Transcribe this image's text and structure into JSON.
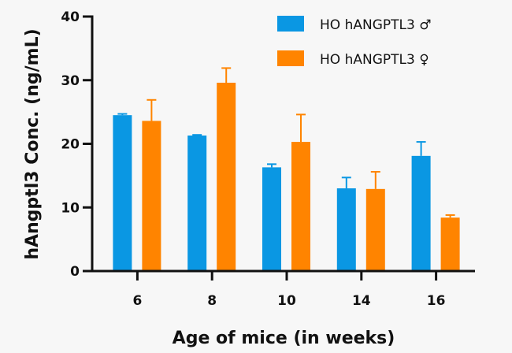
{
  "chart_data": {
    "type": "bar",
    "title": "",
    "xlabel": "Age of mice (in weeks)",
    "ylabel": "hAngptl3 Conc. (ng/mL)",
    "categories": [
      "6",
      "8",
      "10",
      "14",
      "16"
    ],
    "ylim": [
      0,
      40
    ],
    "yticks": [
      "0",
      "10",
      "20",
      "30",
      "40"
    ],
    "grid": false,
    "legend_position": "top-right",
    "series": [
      {
        "name": "HO hANGPTL3 ♂",
        "color": "#0a97e3",
        "values": [
          24.5,
          21.3,
          16.3,
          13.0,
          18.1
        ],
        "error": [
          0.2,
          0.1,
          0.5,
          1.7,
          2.2
        ]
      },
      {
        "name": "HO hANGPTL3 ♀",
        "color": "#ff8400",
        "values": [
          23.6,
          29.6,
          20.3,
          12.9,
          8.4
        ],
        "error": [
          3.3,
          2.3,
          4.3,
          2.7,
          0.4
        ]
      }
    ]
  }
}
